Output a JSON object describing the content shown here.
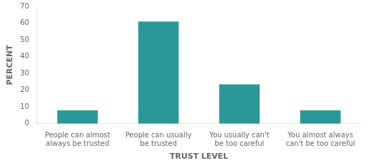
{
  "chart_data": {
    "type": "bar",
    "categories": [
      "People can almost\nalways be trusted",
      "People can usually\nbe trusted",
      "You usually can't\nbe too careful",
      "You almost always\ncan't be too careful"
    ],
    "values": [
      8,
      61,
      23.5,
      8
    ],
    "color": "#2a9898",
    "xlabel": "TRUST LEVEL",
    "ylabel": "PERCENT",
    "ylim": [
      0,
      70
    ],
    "yticks": [
      0,
      10,
      20,
      30,
      40,
      50,
      60,
      70
    ],
    "grid": false
  }
}
